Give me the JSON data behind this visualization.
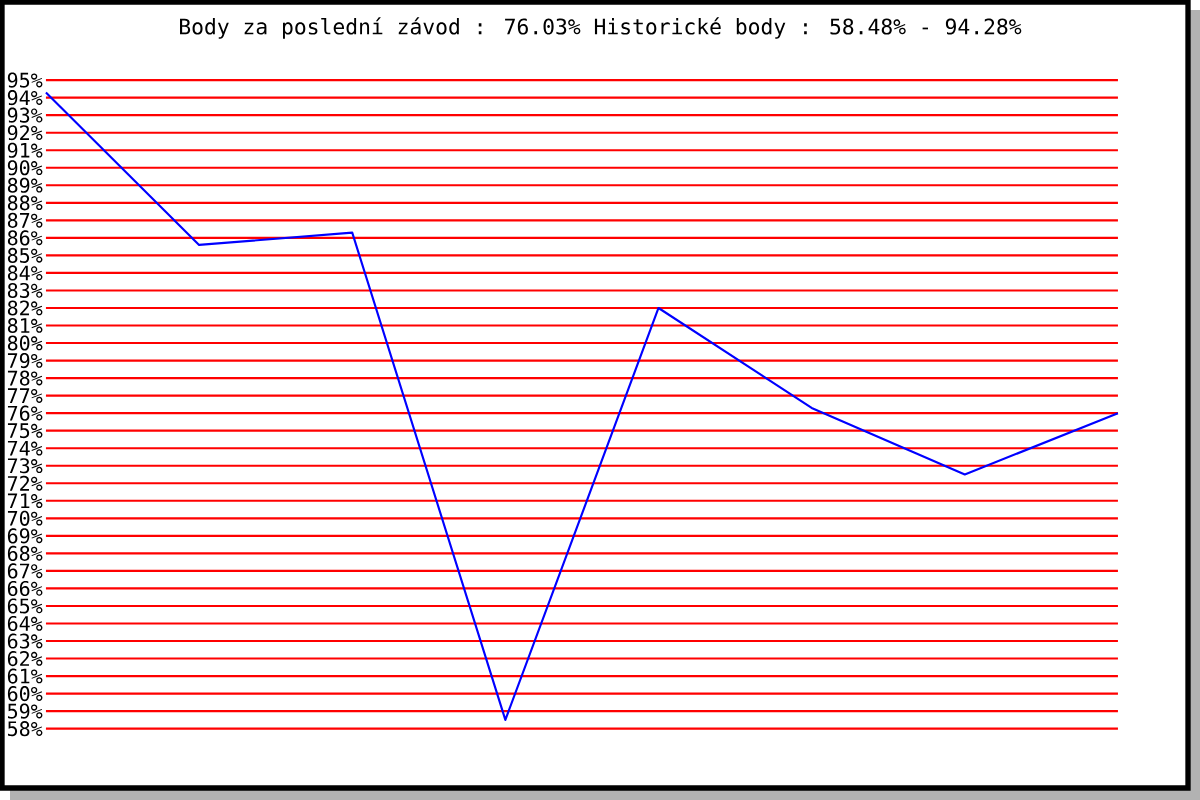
{
  "chart_data": {
    "type": "line",
    "title": "Body za poslední závod : 76.03%  Historické body : 58.48% - 94.28%",
    "categories": [
      null,
      null,
      null,
      null,
      null,
      null,
      null,
      null
    ],
    "series": [
      {
        "color": "#0000ff",
        "values": [
          94.3,
          85.6,
          86.3,
          58.5,
          82.0,
          76.3,
          72.5,
          76.0
        ]
      }
    ],
    "ylim": [
      58,
      95
    ],
    "yticks": [
      {
        "value": 95,
        "label": "95%"
      },
      {
        "value": 94,
        "label": "94%"
      },
      {
        "value": 93,
        "label": "93%"
      },
      {
        "value": 92,
        "label": "92%"
      },
      {
        "value": 91,
        "label": "91%"
      },
      {
        "value": 90,
        "label": "90%"
      },
      {
        "value": 89,
        "label": "89%"
      },
      {
        "value": 88,
        "label": "88%"
      },
      {
        "value": 87,
        "label": "87%"
      },
      {
        "value": 86,
        "label": "86%"
      },
      {
        "value": 85,
        "label": "85%"
      },
      {
        "value": 84,
        "label": "84%"
      },
      {
        "value": 83,
        "label": "83%"
      },
      {
        "value": 82,
        "label": "82%"
      },
      {
        "value": 81,
        "label": "81%"
      },
      {
        "value": 80,
        "label": "80%"
      },
      {
        "value": 79,
        "label": "79%"
      },
      {
        "value": 78,
        "label": "78%"
      },
      {
        "value": 77,
        "label": "77%"
      },
      {
        "value": 76,
        "label": "76%"
      },
      {
        "value": 75,
        "label": "75%"
      },
      {
        "value": 74,
        "label": "74%"
      },
      {
        "value": 73,
        "label": "73%"
      },
      {
        "value": 72,
        "label": "72%"
      },
      {
        "value": 71,
        "label": "71%"
      },
      {
        "value": 70,
        "label": "70%"
      },
      {
        "value": 69,
        "label": "69%"
      },
      {
        "value": 68,
        "label": "68%"
      },
      {
        "value": 67,
        "label": "67%"
      },
      {
        "value": 66,
        "label": "66%"
      },
      {
        "value": 65,
        "label": "65%"
      },
      {
        "value": 64,
        "label": "64%"
      },
      {
        "value": 63,
        "label": "63%"
      },
      {
        "value": 62,
        "label": "62%"
      },
      {
        "value": 61,
        "label": "61%"
      },
      {
        "value": 60,
        "label": "60%"
      },
      {
        "value": 59,
        "label": "59%"
      },
      {
        "value": 58,
        "label": "58%"
      }
    ],
    "grid": "y",
    "tick_labels": "y",
    "marker": "none",
    "line_style": "solid"
  }
}
